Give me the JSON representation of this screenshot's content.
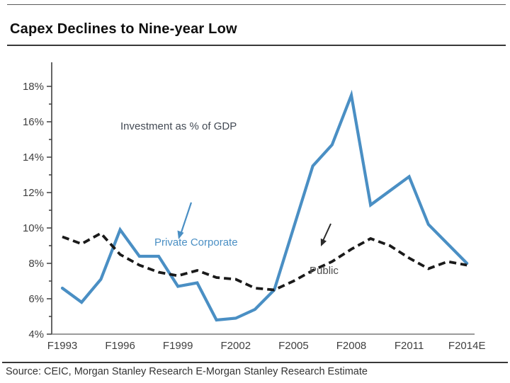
{
  "title": "Capex Declines to Nine-year Low",
  "source_note": "Source: CEIC, Morgan Stanley Research E-Morgan Stanley Research Estimate",
  "colors": {
    "accent_blue": "#4a8fc4",
    "dashed_black": "#1a1a1a",
    "axis_text": "#3f3f3f",
    "rule_dark": "#383838"
  },
  "chart_data": {
    "type": "line",
    "title": "Investment as % of GDP",
    "xlabel": "",
    "ylabel": "",
    "ylim": [
      4,
      18
    ],
    "y_minor_step": 1,
    "grid": false,
    "legend_position": "inline-annotations",
    "categories": [
      "F1993",
      "F1994",
      "F1995",
      "F1996",
      "F1997",
      "F1998",
      "F1999",
      "F2000",
      "F2001",
      "F2002",
      "F2003",
      "F2004",
      "F2005",
      "F2006",
      "F2007",
      "F2008",
      "F2009",
      "F2010",
      "F2011",
      "F2012",
      "F2013",
      "F2014E"
    ],
    "x_tick_labels": [
      "F1993",
      "F1996",
      "F1999",
      "F2002",
      "F2005",
      "F2008",
      "F2011",
      "F2014E"
    ],
    "x_tick_indices": [
      0,
      3,
      6,
      9,
      12,
      15,
      18,
      21
    ],
    "y_tick_labels": [
      "4%",
      "6%",
      "8%",
      "10%",
      "12%",
      "14%",
      "16%",
      "18%"
    ],
    "series": [
      {
        "name": "Private Corporate",
        "style": "solid",
        "color": "#4a8fc4",
        "values": [
          6.6,
          5.8,
          7.1,
          9.9,
          8.4,
          8.4,
          6.7,
          6.9,
          4.8,
          4.9,
          5.4,
          6.5,
          10.0,
          13.5,
          14.7,
          17.5,
          11.3,
          12.1,
          12.9,
          10.2,
          9.1,
          8.0
        ]
      },
      {
        "name": "Public",
        "style": "dashed",
        "color": "#1a1a1a",
        "values": [
          9.5,
          9.1,
          9.7,
          8.5,
          7.9,
          7.5,
          7.3,
          7.6,
          7.2,
          7.1,
          6.6,
          6.5,
          7.0,
          7.6,
          8.1,
          8.8,
          9.4,
          9.0,
          8.3,
          7.7,
          8.1,
          7.9
        ]
      }
    ]
  }
}
